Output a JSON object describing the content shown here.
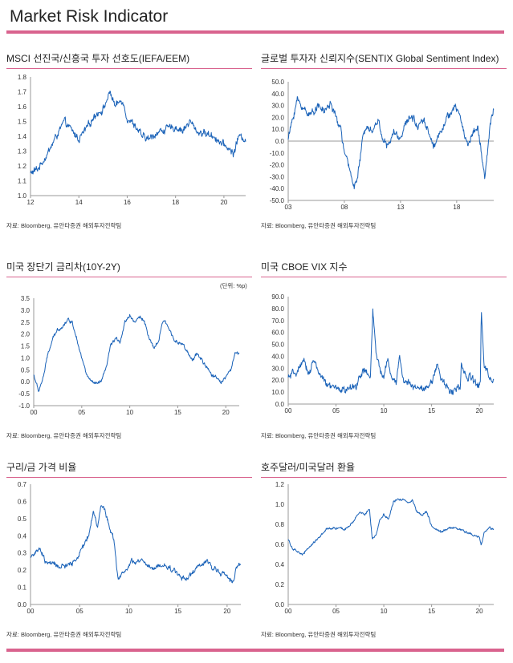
{
  "page": {
    "title": "Market Risk Indicator"
  },
  "colors": {
    "accent_rule": "#d9638e",
    "series_line": "#1a62b8",
    "axis": "#999999"
  },
  "chart_data": [
    {
      "id": "msci",
      "type": "line",
      "title": "MSCI 선진국/신흥국  투자 선호도(IEFA/EEM)",
      "source": "자료: Bloomberg, 유안타증권 해외투자전략팀",
      "unit": "",
      "x_ticks": [
        "12",
        "14",
        "16",
        "18",
        "20"
      ],
      "y_ticks": [
        "1.8",
        "1.7",
        "1.6",
        "1.5",
        "1.4",
        "1.3",
        "1.2",
        "1.1",
        "1.0"
      ],
      "ylim": [
        1.0,
        1.8
      ],
      "xlim": [
        2012,
        2020.9
      ],
      "tick_values": [
        2012,
        2014,
        2016,
        2018,
        2020
      ],
      "zero_line": false,
      "noise": 0.02,
      "series": [
        {
          "x": [
            2012.0,
            2012.3,
            2012.7,
            2013.0,
            2013.4,
            2013.8,
            2014.0,
            2014.3,
            2014.7,
            2015.0,
            2015.3,
            2015.5,
            2015.8,
            2016.0,
            2016.3,
            2016.6,
            2016.9,
            2017.2,
            2017.6,
            2018.0,
            2018.3,
            2018.6,
            2018.9,
            2019.2,
            2019.6,
            2019.9,
            2020.2,
            2020.4,
            2020.6,
            2020.9
          ],
          "y": [
            1.15,
            1.18,
            1.28,
            1.38,
            1.5,
            1.42,
            1.38,
            1.45,
            1.55,
            1.58,
            1.7,
            1.6,
            1.65,
            1.52,
            1.48,
            1.4,
            1.38,
            1.42,
            1.45,
            1.46,
            1.44,
            1.5,
            1.43,
            1.42,
            1.4,
            1.35,
            1.32,
            1.28,
            1.4,
            1.38
          ]
        }
      ]
    },
    {
      "id": "sentix",
      "type": "line",
      "title": "글로벌 투자자 신뢰지수(SENTIX  Global Sentiment Index)",
      "source": "자료: Bloomberg, 유안타증권 해외투자전략팀",
      "unit": "",
      "x_ticks": [
        "03",
        "08",
        "13",
        "18"
      ],
      "y_ticks": [
        "50.0",
        "40.0",
        "30.0",
        "20.0",
        "10.0",
        "0.0",
        "-10.0",
        "-20.0",
        "-30.0",
        "-40.0",
        "-50.0"
      ],
      "ylim": [
        -50,
        50
      ],
      "xlim": [
        2003,
        2021.3
      ],
      "tick_values": [
        2003,
        2008,
        2013,
        2018
      ],
      "zero_line": true,
      "noise": 2.5,
      "series": [
        {
          "x": [
            2003.0,
            2003.3,
            2003.8,
            2004.3,
            2005.0,
            2005.6,
            2006.2,
            2006.8,
            2007.3,
            2007.7,
            2008.0,
            2008.5,
            2008.9,
            2009.2,
            2009.6,
            2010.0,
            2010.5,
            2011.0,
            2011.5,
            2011.9,
            2012.4,
            2012.9,
            2013.5,
            2014.0,
            2014.5,
            2015.0,
            2015.6,
            2016.0,
            2016.6,
            2017.2,
            2017.8,
            2018.2,
            2018.7,
            2019.0,
            2019.5,
            2019.9,
            2020.2,
            2020.5,
            2020.8,
            2021.0,
            2021.3
          ],
          "y": [
            2,
            15,
            35,
            28,
            22,
            30,
            25,
            32,
            18,
            10,
            -10,
            -25,
            -38,
            -30,
            0,
            15,
            8,
            18,
            0,
            -5,
            8,
            2,
            15,
            22,
            12,
            20,
            5,
            -5,
            10,
            20,
            28,
            25,
            5,
            -3,
            8,
            12,
            -10,
            -32,
            -5,
            15,
            28
          ]
        }
      ]
    },
    {
      "id": "yieldcurve",
      "type": "line",
      "title": "미국 장단기 금리차(10Y-2Y)",
      "source": "자료: Bloomberg, 유안타증권 해외투자전략팀",
      "unit": "(단위: %p)",
      "x_ticks": [
        "00",
        "05",
        "10",
        "15",
        "20"
      ],
      "y_ticks": [
        "3.5",
        "3.0",
        "2.5",
        "2.0",
        "1.5",
        "1.0",
        "0.5",
        "0.0",
        "-0.5",
        "-1.0"
      ],
      "ylim": [
        -1.0,
        3.5
      ],
      "xlim": [
        2000,
        2021.4
      ],
      "tick_values": [
        2000,
        2005,
        2010,
        2015,
        2020
      ],
      "zero_line": false,
      "noise": 0.06,
      "series": [
        {
          "x": [
            2000.0,
            2000.5,
            2001.0,
            2001.5,
            2002.0,
            2002.5,
            2003.0,
            2003.5,
            2004.0,
            2004.5,
            2005.0,
            2005.5,
            2006.0,
            2006.5,
            2007.0,
            2007.5,
            2008.0,
            2008.5,
            2009.0,
            2009.5,
            2010.0,
            2010.5,
            2011.0,
            2011.5,
            2012.0,
            2012.5,
            2013.0,
            2013.5,
            2014.0,
            2014.5,
            2015.0,
            2015.5,
            2016.0,
            2016.5,
            2017.0,
            2017.5,
            2018.0,
            2018.5,
            2019.0,
            2019.5,
            2020.0,
            2020.5,
            2021.0,
            2021.4
          ],
          "y": [
            0.3,
            -0.4,
            0.2,
            1.2,
            1.8,
            2.2,
            2.3,
            2.6,
            2.5,
            1.8,
            1.0,
            0.3,
            0.0,
            -0.1,
            0.0,
            0.5,
            1.5,
            1.8,
            1.7,
            2.5,
            2.8,
            2.5,
            2.7,
            2.6,
            1.8,
            1.4,
            1.7,
            2.6,
            2.3,
            1.9,
            1.6,
            1.6,
            1.2,
            0.9,
            1.2,
            0.9,
            0.6,
            0.3,
            0.2,
            0.0,
            0.2,
            0.5,
            1.2,
            1.2
          ]
        }
      ]
    },
    {
      "id": "vix",
      "type": "line",
      "title": "미국 CBOE VIX 지수",
      "source": "자료: Bloomberg, 유안타증권 해외투자전략팀",
      "unit": "",
      "x_ticks": [
        "00",
        "05",
        "10",
        "15",
        "20"
      ],
      "y_ticks": [
        "90.0",
        "80.0",
        "70.0",
        "60.0",
        "50.0",
        "40.0",
        "30.0",
        "20.0",
        "10.0",
        "0.0"
      ],
      "ylim": [
        0,
        90
      ],
      "xlim": [
        2000,
        2021.5
      ],
      "tick_values": [
        2000,
        2005,
        2010,
        2015,
        2020
      ],
      "zero_line": false,
      "noise": 2.5,
      "series": [
        {
          "x": [
            2000.0,
            2000.5,
            2001.0,
            2001.7,
            2002.2,
            2002.6,
            2003.0,
            2003.5,
            2004.0,
            2005.0,
            2006.0,
            2007.0,
            2007.6,
            2008.0,
            2008.6,
            2008.85,
            2009.2,
            2009.6,
            2010.0,
            2010.4,
            2010.8,
            2011.3,
            2011.65,
            2012.0,
            2013.0,
            2014.0,
            2015.0,
            2015.6,
            2016.0,
            2017.0,
            2018.0,
            2018.1,
            2018.8,
            2019.0,
            2019.8,
            2020.1,
            2020.2,
            2020.5,
            2020.8,
            2021.0,
            2021.5
          ],
          "y": [
            22,
            25,
            28,
            35,
            25,
            38,
            30,
            22,
            16,
            13,
            12,
            14,
            25,
            28,
            22,
            78,
            42,
            28,
            22,
            40,
            22,
            18,
            42,
            20,
            15,
            14,
            16,
            35,
            20,
            11,
            13,
            35,
            18,
            25,
            14,
            18,
            80,
            30,
            28,
            22,
            18
          ]
        }
      ]
    },
    {
      "id": "coppergold",
      "type": "line",
      "title": "구리/금 가격 비율",
      "source": "자료: Bloomberg, 유안타증권 해외투자전략팀",
      "unit": "",
      "x_ticks": [
        "00",
        "05",
        "10",
        "15",
        "20"
      ],
      "y_ticks": [
        "0.7",
        "0.6",
        "0.5",
        "0.4",
        "0.3",
        "0.2",
        "0.1",
        "0.0"
      ],
      "ylim": [
        0,
        0.7
      ],
      "xlim": [
        2000,
        2021.4
      ],
      "tick_values": [
        2000,
        2005,
        2010,
        2015,
        2020
      ],
      "zero_line": false,
      "noise": 0.012,
      "series": [
        {
          "x": [
            2000.0,
            2000.5,
            2001.0,
            2001.5,
            2002.0,
            2003.0,
            2004.0,
            2004.6,
            2005.0,
            2005.5,
            2006.0,
            2006.4,
            2006.8,
            2007.2,
            2007.6,
            2008.0,
            2008.5,
            2008.9,
            2009.3,
            2009.8,
            2010.3,
            2010.7,
            2011.2,
            2011.8,
            2012.5,
            2013.0,
            2013.5,
            2014.0,
            2014.5,
            2015.0,
            2015.6,
            2016.0,
            2016.5,
            2017.0,
            2017.5,
            2018.0,
            2018.5,
            2019.0,
            2019.5,
            2020.0,
            2020.3,
            2020.7,
            2021.0,
            2021.4
          ],
          "y": [
            0.28,
            0.3,
            0.32,
            0.25,
            0.24,
            0.22,
            0.23,
            0.26,
            0.3,
            0.35,
            0.42,
            0.55,
            0.45,
            0.58,
            0.55,
            0.45,
            0.38,
            0.15,
            0.18,
            0.2,
            0.25,
            0.24,
            0.26,
            0.23,
            0.2,
            0.23,
            0.22,
            0.22,
            0.2,
            0.18,
            0.15,
            0.16,
            0.18,
            0.22,
            0.23,
            0.25,
            0.22,
            0.2,
            0.18,
            0.16,
            0.14,
            0.15,
            0.22,
            0.24
          ]
        }
      ]
    },
    {
      "id": "audusd",
      "type": "line",
      "title": "호주달러/미국달러  환율",
      "source": "자료: Bloomberg, 유안타증권 해외투자전략팀",
      "unit": "",
      "x_ticks": [
        "00",
        "05",
        "10",
        "15",
        "20"
      ],
      "y_ticks": [
        "1.2",
        "1.0",
        "0.8",
        "0.6",
        "0.4",
        "0.2",
        "0.0"
      ],
      "ylim": [
        0,
        1.2
      ],
      "xlim": [
        2000,
        2021.5
      ],
      "tick_values": [
        2000,
        2005,
        2010,
        2015,
        2020
      ],
      "zero_line": false,
      "noise": 0.01,
      "series": [
        {
          "x": [
            2000.0,
            2000.5,
            2001.0,
            2001.5,
            2002.0,
            2003.0,
            2004.0,
            2005.0,
            2006.0,
            2007.0,
            2007.5,
            2008.0,
            2008.5,
            2008.8,
            2009.2,
            2009.6,
            2010.0,
            2010.5,
            2011.0,
            2011.5,
            2012.0,
            2012.5,
            2013.0,
            2013.5,
            2014.0,
            2014.5,
            2015.0,
            2015.5,
            2016.0,
            2016.5,
            2017.0,
            2018.0,
            2018.5,
            2019.0,
            2019.5,
            2020.0,
            2020.2,
            2020.5,
            2021.0,
            2021.5
          ],
          "y": [
            0.65,
            0.55,
            0.52,
            0.5,
            0.55,
            0.65,
            0.75,
            0.76,
            0.75,
            0.85,
            0.92,
            0.9,
            0.95,
            0.65,
            0.7,
            0.85,
            0.9,
            0.85,
            1.02,
            1.05,
            1.05,
            1.02,
            1.04,
            0.92,
            0.9,
            0.93,
            0.78,
            0.74,
            0.72,
            0.75,
            0.77,
            0.75,
            0.72,
            0.71,
            0.69,
            0.68,
            0.58,
            0.72,
            0.77,
            0.75
          ]
        }
      ]
    }
  ]
}
